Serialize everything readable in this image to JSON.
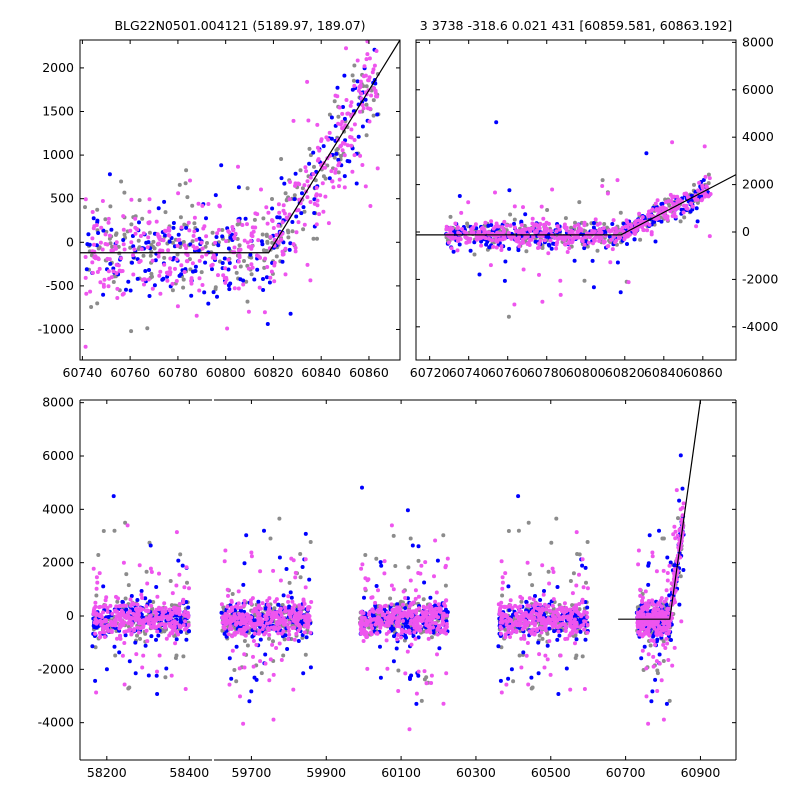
{
  "chart_data": [
    {
      "type": "scatter",
      "title": "BLG22N0501.004121 (5189.97, 189.07)",
      "xlim": [
        60739,
        60873
      ],
      "ylim": [
        -1350,
        2320
      ],
      "xticks": [
        60740,
        60760,
        60780,
        60800,
        60820,
        60840,
        60860
      ],
      "yticks": [
        -1000,
        -500,
        0,
        500,
        1000,
        1500,
        2000
      ],
      "yaxis_side": "left",
      "model_line": [
        [
          60739,
          -120
        ],
        [
          60818,
          -120
        ],
        [
          60873,
          2320
        ]
      ],
      "series": [
        {
          "name": "grey",
          "color": "#8c8c8c"
        },
        {
          "name": "blue",
          "color": "#0000ff"
        },
        {
          "name": "magenta",
          "color": "#ee55ee"
        }
      ]
    },
    {
      "type": "scatter",
      "title": "3 3738 -318.6 0.021 431 [60859.581, 60863.192]",
      "xlim": [
        60713,
        60877
      ],
      "ylim": [
        -5400,
        8100
      ],
      "xticks": [
        60720,
        60740,
        60760,
        60780,
        60800,
        60820,
        60840,
        60860
      ],
      "yticks": [
        -4000,
        -2000,
        0,
        2000,
        4000,
        6000,
        8000
      ],
      "yaxis_side": "right",
      "model_line": [
        [
          60713,
          -120
        ],
        [
          60818,
          -120
        ],
        [
          60877,
          2420
        ]
      ],
      "series": [
        {
          "name": "grey",
          "color": "#8c8c8c"
        },
        {
          "name": "blue",
          "color": "#0000ff"
        },
        {
          "name": "magenta",
          "color": "#ee55ee"
        }
      ]
    },
    {
      "type": "scatter",
      "title": "",
      "broken_axis": true,
      "ylim": [
        -5400,
        8100
      ],
      "yticks": [
        -4000,
        -2000,
        0,
        2000,
        4000,
        6000,
        8000
      ],
      "xticks": [
        58200,
        58400,
        59700,
        59900,
        60100,
        60300,
        60500,
        60700,
        60900
      ],
      "segments": [
        {
          "xlim": [
            58135,
            58455
          ],
          "seasons": [
            [
              58165,
              58400
            ]
          ]
        },
        {
          "xlim": [
            59600,
            60995
          ],
          "seasons": [
            [
              59620,
              59860
            ],
            [
              59990,
              60225
            ],
            [
              60360,
              60600
            ],
            [
              60730,
              60855
            ]
          ]
        }
      ],
      "model_line": [
        [
          60680,
          -120
        ],
        [
          60818,
          -120
        ],
        [
          60900,
          8100
        ]
      ],
      "series": [
        {
          "name": "grey",
          "color": "#8c8c8c"
        },
        {
          "name": "blue",
          "color": "#0000ff"
        },
        {
          "name": "magenta",
          "color": "#ee55ee"
        }
      ]
    }
  ]
}
